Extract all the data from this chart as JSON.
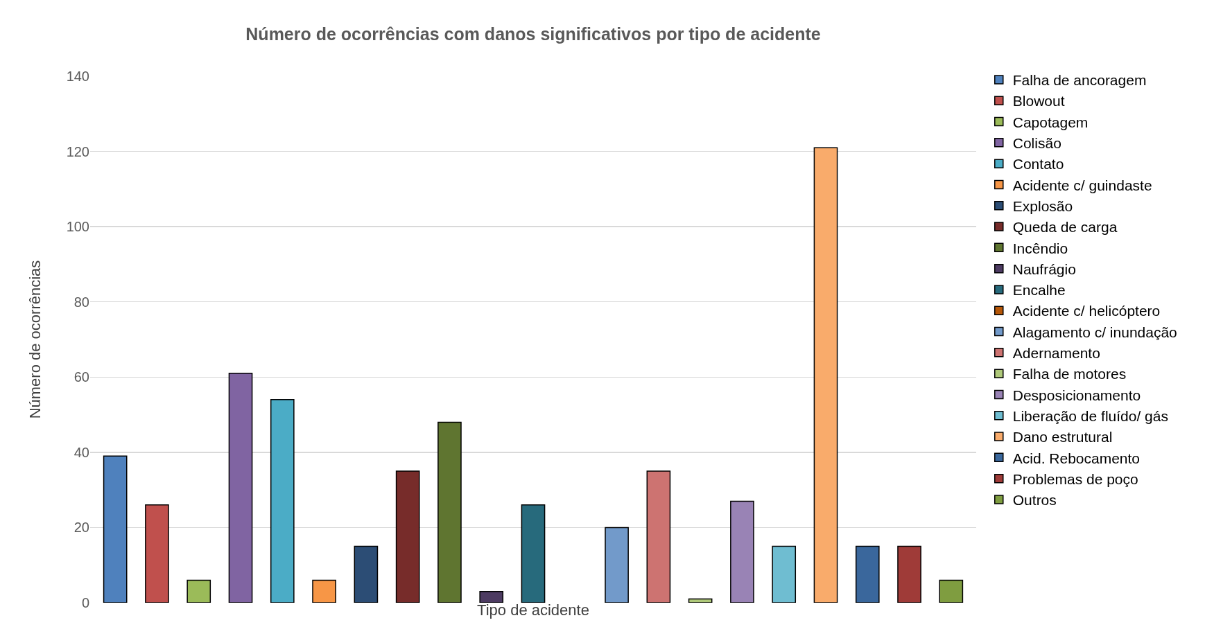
{
  "chart_data": {
    "type": "bar",
    "title": "Número de ocorrências com danos significativos por tipo de acidente",
    "xlabel": "Tipo de acidente",
    "ylabel": "Número de ocorrências",
    "categories": [
      null,
      null,
      null,
      null,
      null,
      null,
      null,
      null,
      null,
      null,
      null,
      null,
      null,
      null,
      null,
      null,
      null,
      null,
      null,
      null,
      null
    ],
    "series": [
      {
        "name": "Falha de ancoragem",
        "color": "#4f81bd",
        "values": [
          39,
          null,
          null,
          null,
          null,
          null,
          null,
          null,
          null,
          null,
          null,
          null,
          null,
          null,
          null,
          null,
          null,
          null,
          null,
          null,
          null
        ]
      },
      {
        "name": "Blowout",
        "color": "#c0504d",
        "values": [
          null,
          26,
          null,
          null,
          null,
          null,
          null,
          null,
          null,
          null,
          null,
          null,
          null,
          null,
          null,
          null,
          null,
          null,
          null,
          null,
          null
        ]
      },
      {
        "name": "Capotagem",
        "color": "#9bbb59",
        "values": [
          null,
          null,
          6,
          null,
          null,
          null,
          null,
          null,
          null,
          null,
          null,
          null,
          null,
          null,
          null,
          null,
          null,
          null,
          null,
          null,
          null
        ]
      },
      {
        "name": "Colisão",
        "color": "#8064a2",
        "values": [
          null,
          null,
          null,
          61,
          null,
          null,
          null,
          null,
          null,
          null,
          null,
          null,
          null,
          null,
          null,
          null,
          null,
          null,
          null,
          null,
          null
        ]
      },
      {
        "name": "Contato",
        "color": "#4bacc6",
        "values": [
          null,
          null,
          null,
          null,
          54,
          null,
          null,
          null,
          null,
          null,
          null,
          null,
          null,
          null,
          null,
          null,
          null,
          null,
          null,
          null,
          null
        ]
      },
      {
        "name": "Acidente c/ guindaste",
        "color": "#f79646",
        "values": [
          null,
          null,
          null,
          null,
          null,
          6,
          null,
          null,
          null,
          null,
          null,
          null,
          null,
          null,
          null,
          null,
          null,
          null,
          null,
          null,
          null
        ]
      },
      {
        "name": "Explosão",
        "color": "#2c4d75",
        "values": [
          null,
          null,
          null,
          null,
          null,
          null,
          15,
          null,
          null,
          null,
          null,
          null,
          null,
          null,
          null,
          null,
          null,
          null,
          null,
          null,
          null
        ]
      },
      {
        "name": "Queda de carga",
        "color": "#772c2a",
        "values": [
          null,
          null,
          null,
          null,
          null,
          null,
          null,
          35,
          null,
          null,
          null,
          null,
          null,
          null,
          null,
          null,
          null,
          null,
          null,
          null,
          null
        ]
      },
      {
        "name": "Incêndio",
        "color": "#5f7530",
        "values": [
          null,
          null,
          null,
          null,
          null,
          null,
          null,
          null,
          48,
          null,
          null,
          null,
          null,
          null,
          null,
          null,
          null,
          null,
          null,
          null,
          null
        ]
      },
      {
        "name": "Naufrágio",
        "color": "#4d3b62",
        "values": [
          null,
          null,
          null,
          null,
          null,
          null,
          null,
          null,
          null,
          3,
          null,
          null,
          null,
          null,
          null,
          null,
          null,
          null,
          null,
          null,
          null
        ]
      },
      {
        "name": "Encalhe",
        "color": "#276a7c",
        "values": [
          null,
          null,
          null,
          null,
          null,
          null,
          null,
          null,
          null,
          null,
          26,
          null,
          null,
          null,
          null,
          null,
          null,
          null,
          null,
          null,
          null
        ]
      },
      {
        "name": "Acidente c/ helicóptero",
        "color": "#b65708",
        "values": [
          null,
          null,
          null,
          null,
          null,
          null,
          null,
          null,
          null,
          null,
          null,
          0,
          null,
          null,
          null,
          null,
          null,
          null,
          null,
          null,
          null
        ]
      },
      {
        "name": "Alagamento c/ inundação",
        "color": "#729aca",
        "values": [
          null,
          null,
          null,
          null,
          null,
          null,
          null,
          null,
          null,
          null,
          null,
          null,
          20,
          null,
          null,
          null,
          null,
          null,
          null,
          null,
          null
        ]
      },
      {
        "name": "Adernamento",
        "color": "#cd7371",
        "values": [
          null,
          null,
          null,
          null,
          null,
          null,
          null,
          null,
          null,
          null,
          null,
          null,
          null,
          35,
          null,
          null,
          null,
          null,
          null,
          null,
          null
        ]
      },
      {
        "name": "Falha de motores",
        "color": "#afc97a",
        "values": [
          null,
          null,
          null,
          null,
          null,
          null,
          null,
          null,
          null,
          null,
          null,
          null,
          null,
          null,
          1,
          null,
          null,
          null,
          null,
          null,
          null
        ]
      },
      {
        "name": "Desposicionamento",
        "color": "#9983b5",
        "values": [
          null,
          null,
          null,
          null,
          null,
          null,
          null,
          null,
          null,
          null,
          null,
          null,
          null,
          null,
          null,
          27,
          null,
          null,
          null,
          null,
          null
        ]
      },
      {
        "name": "Liberação de fluído/ gás",
        "color": "#6fbdd1",
        "values": [
          null,
          null,
          null,
          null,
          null,
          null,
          null,
          null,
          null,
          null,
          null,
          null,
          null,
          null,
          null,
          null,
          15,
          null,
          null,
          null,
          null
        ]
      },
      {
        "name": "Dano estrutural",
        "color": "#f9ab6b",
        "values": [
          null,
          null,
          null,
          null,
          null,
          null,
          null,
          null,
          null,
          null,
          null,
          null,
          null,
          null,
          null,
          null,
          null,
          121,
          null,
          null,
          null
        ]
      },
      {
        "name": "Acid. Rebocamento",
        "color": "#3a679c",
        "values": [
          null,
          null,
          null,
          null,
          null,
          null,
          null,
          null,
          null,
          null,
          null,
          null,
          null,
          null,
          null,
          null,
          null,
          null,
          15,
          null,
          null
        ]
      },
      {
        "name": "Problemas de poço",
        "color": "#9f3b38",
        "values": [
          null,
          null,
          null,
          null,
          null,
          null,
          null,
          null,
          null,
          null,
          null,
          null,
          null,
          null,
          null,
          null,
          null,
          null,
          null,
          15,
          null
        ]
      },
      {
        "name": "Outros",
        "color": "#7f9d40",
        "values": [
          null,
          null,
          null,
          null,
          null,
          null,
          null,
          null,
          null,
          null,
          null,
          null,
          null,
          null,
          null,
          null,
          null,
          null,
          null,
          null,
          6
        ]
      }
    ],
    "ylim": [
      0,
      140
    ],
    "yticks": [
      0,
      20,
      40,
      60,
      80,
      100,
      120,
      140
    ],
    "grid": "y",
    "legend": "right"
  }
}
